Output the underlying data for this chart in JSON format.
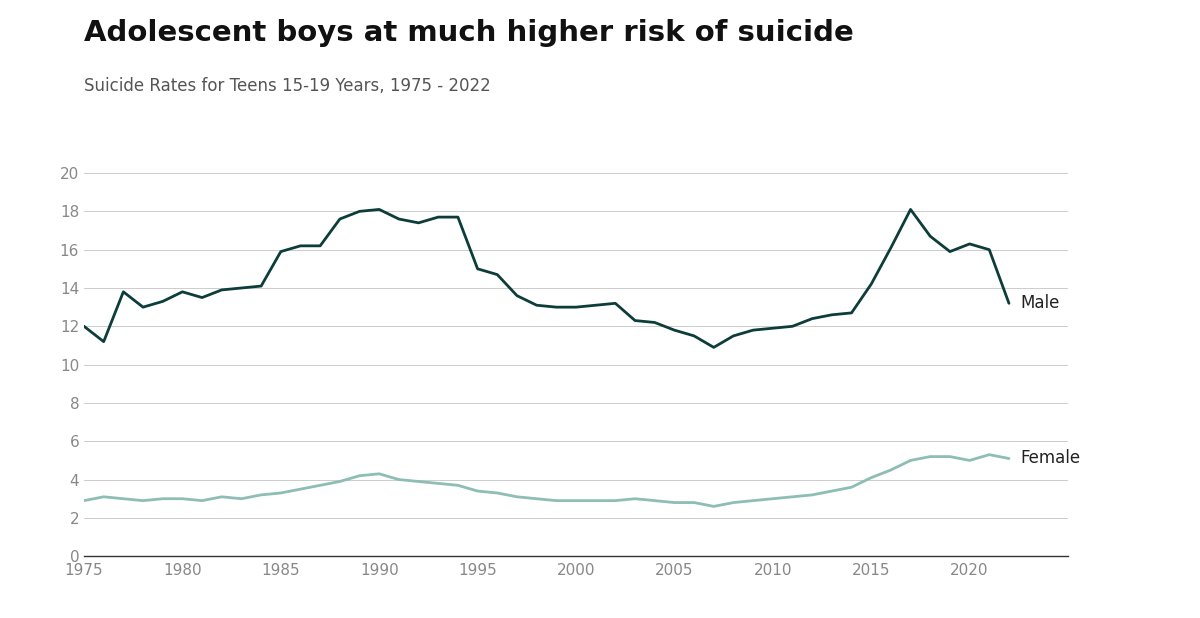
{
  "title": "Adolescent boys at much higher risk of suicide",
  "subtitle": "Suicide Rates for Teens 15-19 Years, 1975 - 2022",
  "title_fontsize": 21,
  "subtitle_fontsize": 12,
  "male_color": "#0d3d3a",
  "female_color": "#8dbdb5",
  "label_color": "#222222",
  "grid_color": "#cccccc",
  "background_color": "#ffffff",
  "years": [
    1975,
    1976,
    1977,
    1978,
    1979,
    1980,
    1981,
    1982,
    1983,
    1984,
    1985,
    1986,
    1987,
    1988,
    1989,
    1990,
    1991,
    1992,
    1993,
    1994,
    1995,
    1996,
    1997,
    1998,
    1999,
    2000,
    2001,
    2002,
    2003,
    2004,
    2005,
    2006,
    2007,
    2008,
    2009,
    2010,
    2011,
    2012,
    2013,
    2014,
    2015,
    2016,
    2017,
    2018,
    2019,
    2020,
    2021,
    2022
  ],
  "male_values": [
    12.0,
    11.2,
    13.8,
    13.0,
    13.3,
    13.8,
    13.5,
    13.9,
    14.0,
    14.1,
    15.9,
    16.2,
    16.2,
    17.6,
    18.0,
    18.1,
    17.6,
    17.4,
    17.7,
    17.7,
    15.0,
    14.7,
    13.6,
    13.1,
    13.0,
    13.0,
    13.1,
    13.2,
    12.3,
    12.2,
    11.8,
    11.5,
    10.9,
    11.5,
    11.8,
    11.9,
    12.0,
    12.4,
    12.6,
    12.7,
    14.2,
    16.1,
    18.1,
    16.7,
    15.9,
    16.3,
    16.0,
    13.2
  ],
  "female_values": [
    2.9,
    3.1,
    3.0,
    2.9,
    3.0,
    3.0,
    2.9,
    3.1,
    3.0,
    3.2,
    3.3,
    3.5,
    3.7,
    3.9,
    4.2,
    4.3,
    4.0,
    3.9,
    3.8,
    3.7,
    3.4,
    3.3,
    3.1,
    3.0,
    2.9,
    2.9,
    2.9,
    2.9,
    3.0,
    2.9,
    2.8,
    2.8,
    2.6,
    2.8,
    2.9,
    3.0,
    3.1,
    3.2,
    3.4,
    3.6,
    4.1,
    4.5,
    5.0,
    5.2,
    5.2,
    5.0,
    5.3,
    5.1
  ],
  "ylim": [
    0,
    20
  ],
  "yticks": [
    0,
    2,
    4,
    6,
    8,
    10,
    12,
    14,
    16,
    18,
    20
  ],
  "xticks": [
    1975,
    1980,
    1985,
    1990,
    1995,
    2000,
    2005,
    2010,
    2015,
    2020
  ],
  "linewidth": 2.0,
  "male_label": "Male",
  "female_label": "Female",
  "tick_color": "#888888",
  "spine_color": "#333333"
}
